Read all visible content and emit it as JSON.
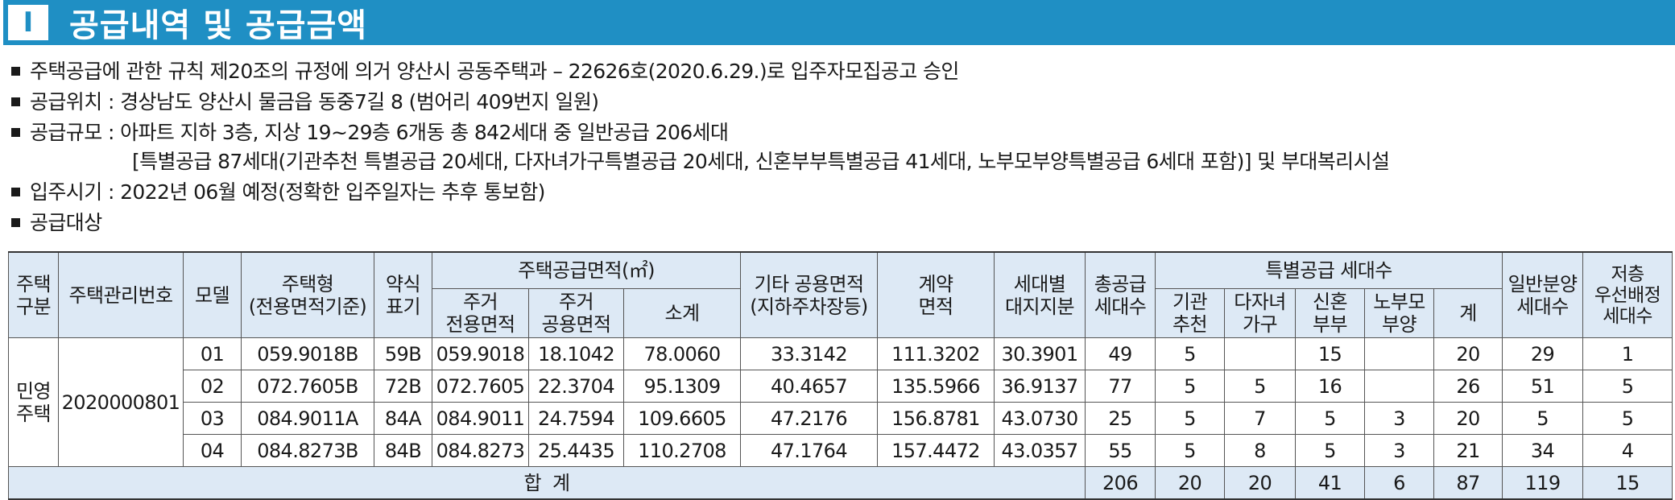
{
  "section": {
    "number": "I",
    "title": "공급내역 및 공급금액"
  },
  "bullets": [
    "주택공급에 관한 규칙 제20조의 규정에 의거 양산시 공동주택과 – 22626호(2020.6.29.)로 입주자모집공고 승인",
    "공급위치 : 경상남도 양산시 물금읍 동중7길 8 (범어리 409번지 일원)",
    "공급규모 : 아파트 지하 3층, 지상 19~29층 6개동 총 842세대 중 일반공급 206세대",
    "[특별공급 87세대(기관추천 특별공급 20세대, 다자녀가구특별공급 20세대, 신혼부부특별공급 41세대, 노부모부양특별공급 6세대 포함)] 및 부대복리시설",
    "입주시기 : 2022년 06월 예정(정확한 입주일자는 추후 통보함)",
    "공급대상"
  ],
  "table": {
    "headers": {
      "house_type_class": "주택\n구분",
      "mgmt_no": "주택관리번호",
      "model": "모델",
      "house_type": "주택형\n(전용면적기준)",
      "abbr": "약식\n표기",
      "supply_area": "주택공급면적(㎡)",
      "excl_area": "주거\n전용면적",
      "common_area": "주거\n공용면적",
      "subtotal": "소계",
      "other_common": "기타 공용면적\n(지하주차장등)",
      "contract_area": "계약\n면적",
      "land_share": "세대별\n대지지분",
      "total_units": "총공급\n세대수",
      "special": "특별공급 세대수",
      "agency": "기관\n추천",
      "multi_child": "다자녀\n가구",
      "newlywed": "신혼\n부부",
      "elderly": "노부모\n부양",
      "special_sum": "계",
      "general": "일반분양\n세대수",
      "low_floor": "저층\n우선배정\n세대수"
    },
    "class_label": "민영\n주택",
    "mgmt_number": "2020000801",
    "rows": [
      [
        "01",
        "059.9018B",
        "59B",
        "059.9018",
        "18.1042",
        "78.0060",
        "33.3142",
        "111.3202",
        "30.3901",
        "49",
        "5",
        "",
        "15",
        "",
        "20",
        "29",
        "1"
      ],
      [
        "02",
        "072.7605B",
        "72B",
        "072.7605",
        "22.3704",
        "95.1309",
        "40.4657",
        "135.5966",
        "36.9137",
        "77",
        "5",
        "5",
        "16",
        "",
        "26",
        "51",
        "5"
      ],
      [
        "03",
        "084.9011A",
        "84A",
        "084.9011",
        "24.7594",
        "109.6605",
        "47.2176",
        "156.8781",
        "43.0730",
        "25",
        "5",
        "7",
        "5",
        "3",
        "20",
        "5",
        "5"
      ],
      [
        "04",
        "084.8273B",
        "84B",
        "084.8273",
        "25.4435",
        "110.2708",
        "47.1764",
        "157.4472",
        "43.0357",
        "55",
        "5",
        "8",
        "5",
        "3",
        "21",
        "34",
        "4"
      ]
    ],
    "total": {
      "label": "합  계",
      "values": [
        "206",
        "20",
        "20",
        "41",
        "6",
        "87",
        "119",
        "15"
      ]
    }
  },
  "colors": {
    "title_bar": "#1f8fc4",
    "header_fill": "#dde9f5"
  }
}
